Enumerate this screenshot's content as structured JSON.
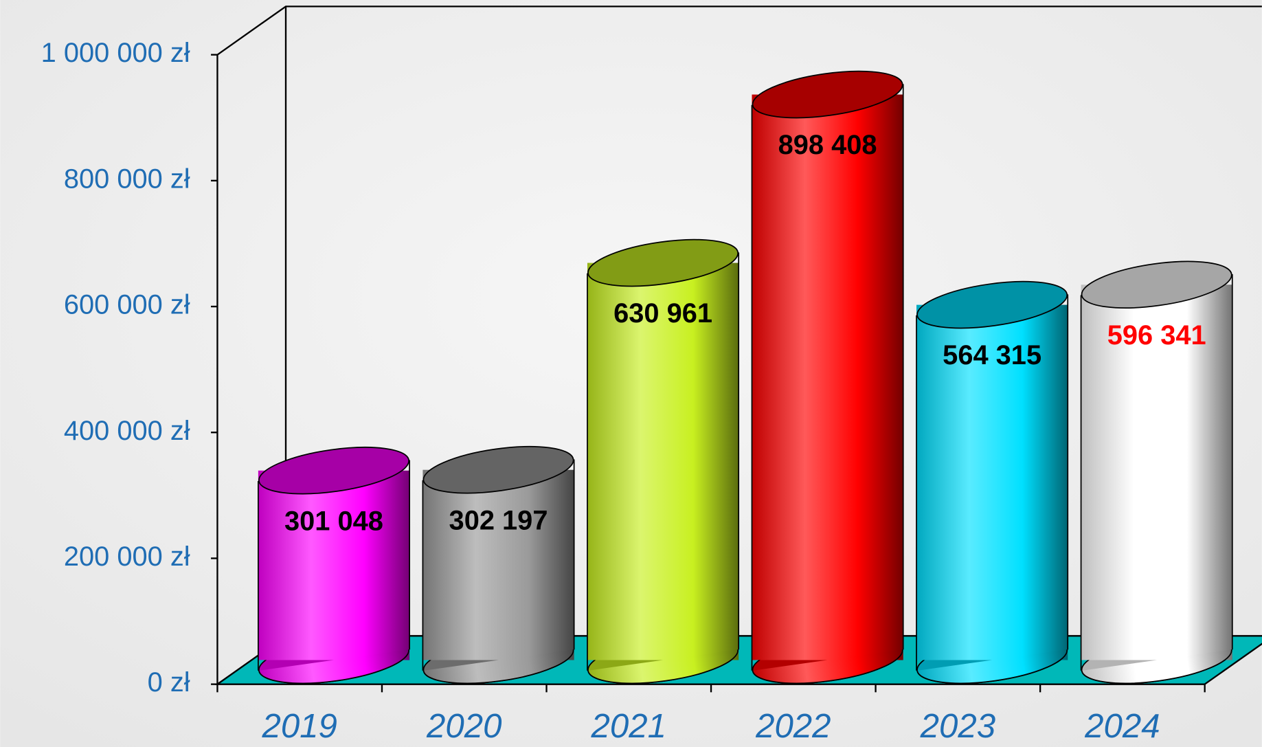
{
  "chart_data": {
    "type": "bar",
    "categories": [
      "2019",
      "2020",
      "2021",
      "2022",
      "2023",
      "2024"
    ],
    "values": [
      301048,
      302197,
      630961,
      898408,
      564315,
      596341
    ],
    "value_labels": [
      "301 048",
      "302 197",
      "630 961",
      "898 408",
      "564 315",
      "596 341"
    ],
    "colors": [
      "#ff00ff",
      "#9a9a9a",
      "#c8f020",
      "#ff0000",
      "#00e0ff",
      "#ffffff"
    ],
    "value_label_colors": [
      "#000000",
      "#000000",
      "#000000",
      "#000000",
      "#000000",
      "#ff0000"
    ],
    "ylim": [
      0,
      1000000
    ],
    "yticks": [
      {
        "value": 0,
        "label": "0 zł"
      },
      {
        "value": 200000,
        "label": "200 000 zł"
      },
      {
        "value": 400000,
        "label": "400 000 zł"
      },
      {
        "value": 600000,
        "label": "600 000 zł"
      },
      {
        "value": 800000,
        "label": "800 000 zł"
      },
      {
        "value": 1000000,
        "label": "1 000 000 zł"
      }
    ],
    "floor_color": "#00b8b8"
  }
}
